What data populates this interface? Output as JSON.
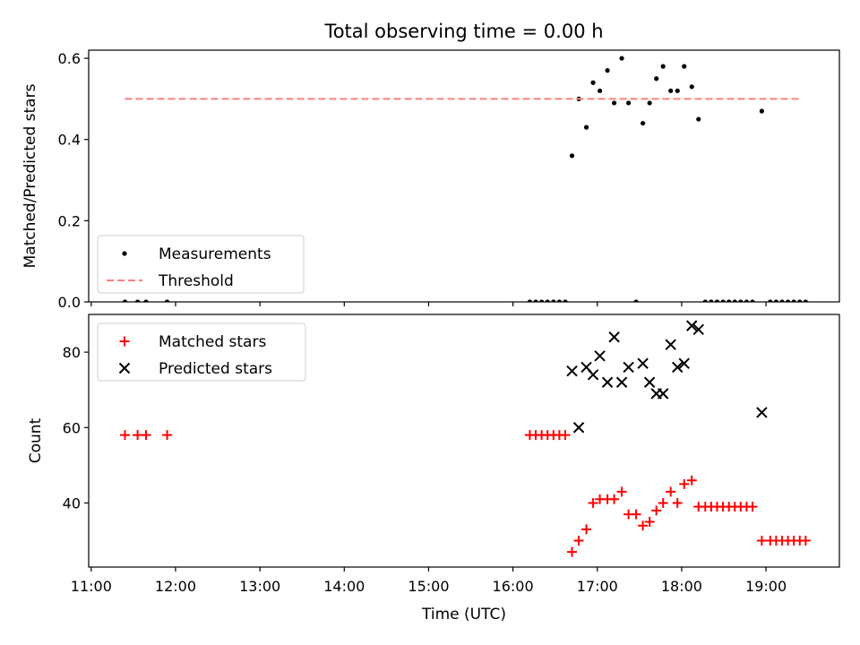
{
  "figure": {
    "title": "Total observing time = 0.00 h",
    "xlabel": "Time (UTC)",
    "x_ticks": [
      "11:00",
      "12:00",
      "13:00",
      "14:00",
      "15:00",
      "16:00",
      "17:00",
      "18:00",
      "19:00"
    ],
    "x_tick_hours": [
      11,
      12,
      13,
      14,
      15,
      16,
      17,
      18,
      19
    ],
    "xlim_hours": [
      10.97,
      19.87
    ]
  },
  "chart_data": [
    {
      "type": "scatter",
      "ylabel": "Matched/Predicted stars",
      "ylim": [
        0,
        0.62
      ],
      "y_ticks": [
        0.0,
        0.2,
        0.4,
        0.6
      ],
      "y_tick_labels": [
        "0.0",
        "0.2",
        "0.4",
        "0.6"
      ],
      "grid": false,
      "legend_position": "lower-left",
      "colors": {
        "measurements": "#000000",
        "threshold": "#ff7f7f"
      },
      "series": [
        {
          "name": "Measurements",
          "marker": "dot",
          "x": [
            11.4,
            11.55,
            11.65,
            11.9,
            16.2,
            16.27,
            16.34,
            16.41,
            16.48,
            16.55,
            16.62,
            16.7,
            16.78,
            16.87,
            16.95,
            17.03,
            17.12,
            17.2,
            17.29,
            17.37,
            17.46,
            17.54,
            17.62,
            17.7,
            17.78,
            17.87,
            17.95,
            18.03,
            18.12,
            18.2,
            18.28,
            18.35,
            18.42,
            18.49,
            18.56,
            18.63,
            18.7,
            18.77,
            18.84,
            18.95,
            19.05,
            19.12,
            19.19,
            19.26,
            19.33,
            19.4,
            19.47
          ],
          "y": [
            0,
            0,
            0,
            0,
            0,
            0,
            0,
            0,
            0,
            0,
            0,
            0.36,
            0.5,
            0.43,
            0.54,
            0.52,
            0.57,
            0.49,
            0.6,
            0.49,
            0,
            0.44,
            0.49,
            0.55,
            0.58,
            0.52,
            0.52,
            0.58,
            0.53,
            0.45,
            0,
            0,
            0,
            0,
            0,
            0,
            0,
            0,
            0,
            0.47,
            0,
            0,
            0,
            0,
            0,
            0,
            0
          ]
        },
        {
          "name": "Threshold",
          "marker": "dashed-line",
          "x": [
            11.4,
            19.4
          ],
          "y": [
            0.5,
            0.5
          ]
        }
      ]
    },
    {
      "type": "scatter",
      "ylabel": "Count",
      "ylim": [
        23,
        90
      ],
      "y_ticks": [
        40,
        60,
        80
      ],
      "y_tick_labels": [
        "40",
        "60",
        "80"
      ],
      "grid": false,
      "legend_position": "upper-left",
      "colors": {
        "matched": "#ff0000",
        "predicted": "#000000"
      },
      "series": [
        {
          "name": "Matched stars",
          "marker": "plus",
          "x": [
            11.4,
            11.55,
            11.65,
            11.9,
            16.2,
            16.27,
            16.34,
            16.41,
            16.48,
            16.55,
            16.62,
            16.7,
            16.78,
            16.87,
            16.95,
            17.03,
            17.12,
            17.2,
            17.29,
            17.37,
            17.46,
            17.54,
            17.62,
            17.7,
            17.78,
            17.87,
            17.95,
            18.03,
            18.12,
            18.2,
            18.28,
            18.35,
            18.42,
            18.49,
            18.56,
            18.63,
            18.7,
            18.77,
            18.84,
            18.95,
            19.05,
            19.12,
            19.19,
            19.26,
            19.33,
            19.4,
            19.47
          ],
          "y": [
            58,
            58,
            58,
            58,
            58,
            58,
            58,
            58,
            58,
            58,
            58,
            27,
            30,
            33,
            40,
            41,
            41,
            41,
            43,
            37,
            37,
            34,
            35,
            38,
            40,
            43,
            40,
            45,
            46,
            39,
            39,
            39,
            39,
            39,
            39,
            39,
            39,
            39,
            39,
            30,
            30,
            30,
            30,
            30,
            30,
            30,
            30
          ]
        },
        {
          "name": "Predicted stars",
          "marker": "x",
          "x": [
            16.7,
            16.78,
            16.87,
            16.95,
            17.03,
            17.12,
            17.2,
            17.29,
            17.37,
            17.54,
            17.62,
            17.7,
            17.78,
            17.87,
            17.95,
            18.03,
            18.12,
            18.2,
            18.95
          ],
          "y": [
            75,
            60,
            76,
            74,
            79,
            72,
            84,
            72,
            76,
            77,
            72,
            69,
            69,
            82,
            76,
            77,
            87,
            86,
            64
          ]
        }
      ]
    }
  ]
}
